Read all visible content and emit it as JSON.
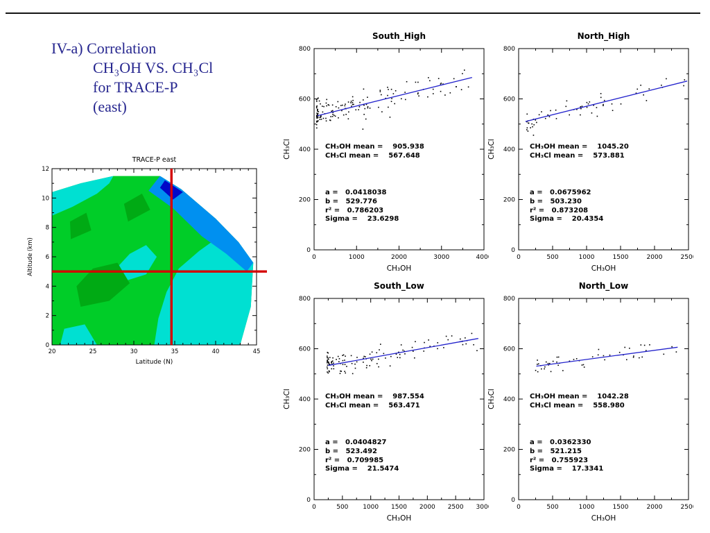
{
  "slide": {
    "title_lines": [
      "IV-a) Correlation",
      "CH₃OH VS. CH₃Cl",
      "for TRACE-P",
      "(east)"
    ]
  },
  "chart_data": [
    {
      "id": "trace-p-east-contour",
      "type": "heatmap",
      "title": "TRACE-P east",
      "title_color": "#c87014",
      "xlabel": "Latitude (N)",
      "ylabel": "Altitude (km)",
      "xlim": [
        20,
        45
      ],
      "ylim": [
        0,
        12
      ],
      "xticks": [
        20,
        25,
        30,
        35,
        40,
        45
      ],
      "yticks": [
        0,
        2,
        4,
        6,
        8,
        10,
        12
      ],
      "x_minor": 1,
      "y_minor": 1,
      "crosshair": {
        "lat": 34.6,
        "alt": 5.0,
        "color": "#d40000"
      },
      "regions": [
        {
          "color": "#00cd28",
          "points": [
            [
              20,
              0
            ],
            [
              43,
              0
            ],
            [
              44.3,
              2.6
            ],
            [
              44.6,
              5.6
            ],
            [
              42.8,
              7.0
            ],
            [
              40,
              8.6
            ],
            [
              35.8,
              10.6
            ],
            [
              33.2,
              11.5
            ],
            [
              27.5,
              11.5
            ],
            [
              23.5,
              11.0
            ],
            [
              20,
              10.4
            ]
          ]
        },
        {
          "color": "#00e0d2",
          "points": [
            [
              20,
              8.8
            ],
            [
              22.5,
              9.4
            ],
            [
              25.5,
              10.3
            ],
            [
              27,
              11.0
            ],
            [
              27.5,
              11.5
            ],
            [
              23.5,
              11.0
            ],
            [
              20,
              10.4
            ]
          ]
        },
        {
          "color": "#00e0d2",
          "points": [
            [
              32.5,
              0
            ],
            [
              43,
              0
            ],
            [
              44.3,
              2.6
            ],
            [
              44.6,
              5.6
            ],
            [
              42.8,
              7.0
            ],
            [
              40.5,
              7.4
            ],
            [
              38,
              6.4
            ],
            [
              35.5,
              5.2
            ],
            [
              34,
              3.6
            ],
            [
              33,
              1.8
            ]
          ]
        },
        {
          "color": "#00e0d2",
          "points": [
            [
              27.5,
              5.0
            ],
            [
              29.5,
              6.2
            ],
            [
              31.5,
              6.8
            ],
            [
              32.8,
              6.0
            ],
            [
              31.5,
              4.8
            ],
            [
              29.2,
              4.4
            ]
          ]
        },
        {
          "color": "#00e0d2",
          "points": [
            [
              21,
              0
            ],
            [
              25.5,
              0
            ],
            [
              24,
              1.4
            ],
            [
              21.5,
              1.1
            ]
          ]
        },
        {
          "color": "#00aa14",
          "points": [
            [
              23.5,
              2.6
            ],
            [
              27,
              3.0
            ],
            [
              29.5,
              4.2
            ],
            [
              28,
              5.6
            ],
            [
              25,
              5.2
            ],
            [
              23,
              4.0
            ]
          ]
        },
        {
          "color": "#00aa14",
          "points": [
            [
              22.3,
              7.2
            ],
            [
              24.8,
              7.8
            ],
            [
              24.2,
              9.0
            ],
            [
              22.2,
              8.4
            ]
          ]
        },
        {
          "color": "#00aa14",
          "points": [
            [
              29.3,
              8.4
            ],
            [
              32,
              9.2
            ],
            [
              31,
              10.3
            ],
            [
              28.8,
              9.6
            ]
          ]
        },
        {
          "color": "#0090f0",
          "points": [
            [
              33.2,
              11.5
            ],
            [
              35.8,
              10.6
            ],
            [
              40,
              8.6
            ],
            [
              42.8,
              7.0
            ],
            [
              44.6,
              5.6
            ],
            [
              43.8,
              5.0
            ],
            [
              41.3,
              6.2
            ],
            [
              38.3,
              7.4
            ],
            [
              34.8,
              9.3
            ],
            [
              31.8,
              10.5
            ]
          ]
        },
        {
          "color": "#0008c8",
          "points": [
            [
              33.8,
              11.2
            ],
            [
              36.0,
              10.4
            ],
            [
              34.8,
              9.9
            ],
            [
              33.2,
              10.7
            ]
          ]
        }
      ]
    },
    {
      "id": "south-high",
      "type": "scatter",
      "title": "South_High",
      "xlabel": "CH₃OH",
      "ylabel": "CH₃Cl",
      "xlim": [
        0,
        4000
      ],
      "ylim": [
        0,
        800
      ],
      "xticks": [
        0,
        1000,
        2000,
        3000,
        4000
      ],
      "yticks": [
        0,
        200,
        400,
        600,
        800
      ],
      "x_minor": 500,
      "y_minor": 100,
      "stats_lines": [
        "CH₃OH mean =    905.938",
        "CH₃Cl mean =    567.648",
        "a =   0.0418038",
        "b =   529.776",
        "r² =   0.786203",
        "Sigma =    23.6298"
      ],
      "fit": {
        "slope": 0.0418038,
        "intercept": 529.776,
        "x0": 80,
        "x1": 3720,
        "color": "#2222cc"
      },
      "scatter": {
        "n": 150,
        "x_min": 60,
        "x_max": 3700,
        "cluster_power": 2.6,
        "noise": 26,
        "seed": 11
      }
    },
    {
      "id": "north-high",
      "type": "scatter",
      "title": "North_High",
      "xlabel": "CH₃OH",
      "ylabel": "CH₃Cl",
      "xlim": [
        0,
        2500
      ],
      "ylim": [
        0,
        800
      ],
      "xticks": [
        0,
        500,
        1000,
        1500,
        2000,
        2500
      ],
      "yticks": [
        0,
        200,
        400,
        600,
        800
      ],
      "x_minor": 250,
      "y_minor": 100,
      "stats_lines": [
        "CH₃OH mean =    1045.20",
        "CH₃Cl mean =    573.881",
        "a =   0.0675962",
        "b =   503.230",
        "r² =   0.873208",
        "Sigma =    20.4354"
      ],
      "fit": {
        "slope": 0.0675962,
        "intercept": 503.23,
        "x0": 100,
        "x1": 2480,
        "color": "#2222cc"
      },
      "scatter": {
        "n": 60,
        "x_min": 120,
        "x_max": 2450,
        "cluster_power": 1.5,
        "noise": 20,
        "seed": 22
      }
    },
    {
      "id": "south-low",
      "type": "scatter",
      "title": "South_Low",
      "xlabel": "CH₃OH",
      "ylabel": "CH₃Cl",
      "xlim": [
        0,
        3000
      ],
      "ylim": [
        0,
        800
      ],
      "xticks": [
        0,
        500,
        1000,
        1500,
        2000,
        2500,
        3000
      ],
      "yticks": [
        0,
        200,
        400,
        600,
        800
      ],
      "x_minor": 250,
      "y_minor": 100,
      "stats_lines": [
        "CH₃OH mean =    987.554",
        "CH₃Cl mean =    563.471",
        "a =   0.0404827",
        "b =   523.492",
        "r² =   0.709985",
        "Sigma =    21.5474"
      ],
      "fit": {
        "slope": 0.0404827,
        "intercept": 523.492,
        "x0": 250,
        "x1": 2900,
        "color": "#2222cc"
      },
      "scatter": {
        "n": 120,
        "x_min": 230,
        "x_max": 2900,
        "cluster_power": 2.4,
        "noise": 21.5,
        "seed": 33
      }
    },
    {
      "id": "north-low",
      "type": "scatter",
      "title": "North_Low",
      "xlabel": "CH₃OH",
      "ylabel": "CH₃Cl",
      "xlim": [
        0,
        2500
      ],
      "ylim": [
        0,
        800
      ],
      "xticks": [
        0,
        500,
        1000,
        1500,
        2000,
        2500
      ],
      "yticks": [
        0,
        200,
        400,
        600,
        800
      ],
      "x_minor": 250,
      "y_minor": 100,
      "stats_lines": [
        "CH₃OH mean =    1042.28",
        "CH₃Cl mean =    558.980",
        "a =   0.0362330",
        "b =   521.215",
        "r² =   0.755923",
        "Sigma =    17.3341"
      ],
      "fit": {
        "slope": 0.036233,
        "intercept": 521.215,
        "x0": 260,
        "x1": 2340,
        "color": "#2222cc"
      },
      "scatter": {
        "n": 50,
        "x_min": 250,
        "x_max": 2350,
        "cluster_power": 1.7,
        "noise": 17.3,
        "seed": 44
      }
    }
  ]
}
